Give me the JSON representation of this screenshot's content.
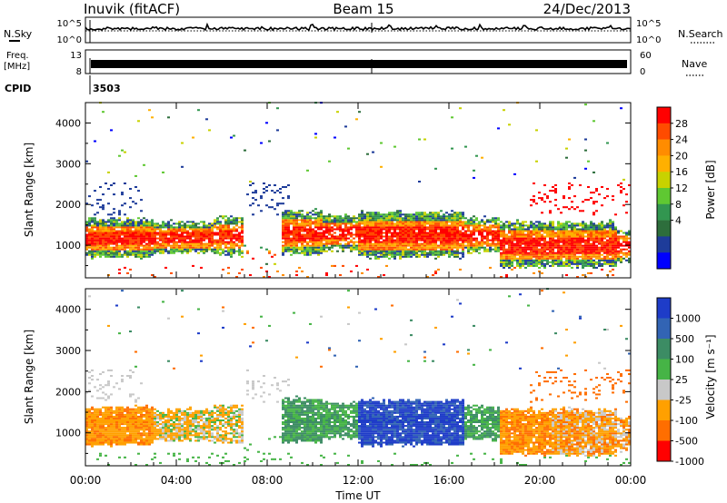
{
  "header": {
    "station": "Inuvik (fitACF)",
    "beam": "Beam 15",
    "date": "24/Dec/2013"
  },
  "noise_panel": {
    "left_label": "N.Sky",
    "right_label": "N.Search",
    "left_ticks": [
      "10^5",
      "10^0"
    ],
    "right_ticks": [
      "10^5",
      "10^0"
    ]
  },
  "freq_panel": {
    "left_label_1": "Freq.",
    "left_label_2": "[MHz]",
    "right_label": "Nave",
    "left_ticks": [
      "13",
      "8"
    ],
    "right_ticks": [
      "60",
      "0"
    ]
  },
  "cpid": {
    "label": "CPID",
    "value": "3503"
  },
  "x_axis": {
    "label": "Time UT",
    "ticks": [
      "00:00",
      "04:00",
      "08:00",
      "12:00",
      "16:00",
      "20:00",
      "00:00"
    ]
  },
  "chart_data": [
    {
      "type": "heatmap",
      "name": "power",
      "ylabel": "Slant Range [km]",
      "y_ticks": [
        "4000",
        "3000",
        "2000",
        "1000"
      ],
      "ylim": [
        200,
        4500
      ],
      "xlim_hours": [
        0,
        24
      ],
      "colorbar": {
        "label": "Power [dB]",
        "ticks": [
          "28",
          "24",
          "20",
          "16",
          "12",
          "8",
          "4"
        ],
        "colors": [
          "#ff0000",
          "#ff4b00",
          "#ff8c00",
          "#ffb000",
          "#c8d200",
          "#5fc832",
          "#329650",
          "#2d6e3c",
          "#1e3c9a",
          "#0000ff"
        ]
      }
    },
    {
      "type": "heatmap",
      "name": "velocity",
      "ylabel": "Slant Range [km]",
      "y_ticks": [
        "4000",
        "3000",
        "2000",
        "1000"
      ],
      "ylim": [
        200,
        4500
      ],
      "xlim_hours": [
        0,
        24
      ],
      "colorbar": {
        "label": "Velocity [m s⁻¹]",
        "ticks": [
          "1000",
          "500",
          "100",
          "25",
          "-25",
          "-100",
          "-500",
          "-1000"
        ],
        "colors": [
          "#1e3cc8",
          "#3264b4",
          "#3c8c64",
          "#46b446",
          "#c8c8c8",
          "#ffa000",
          "#ff6e00",
          "#ff0000"
        ]
      }
    }
  ]
}
